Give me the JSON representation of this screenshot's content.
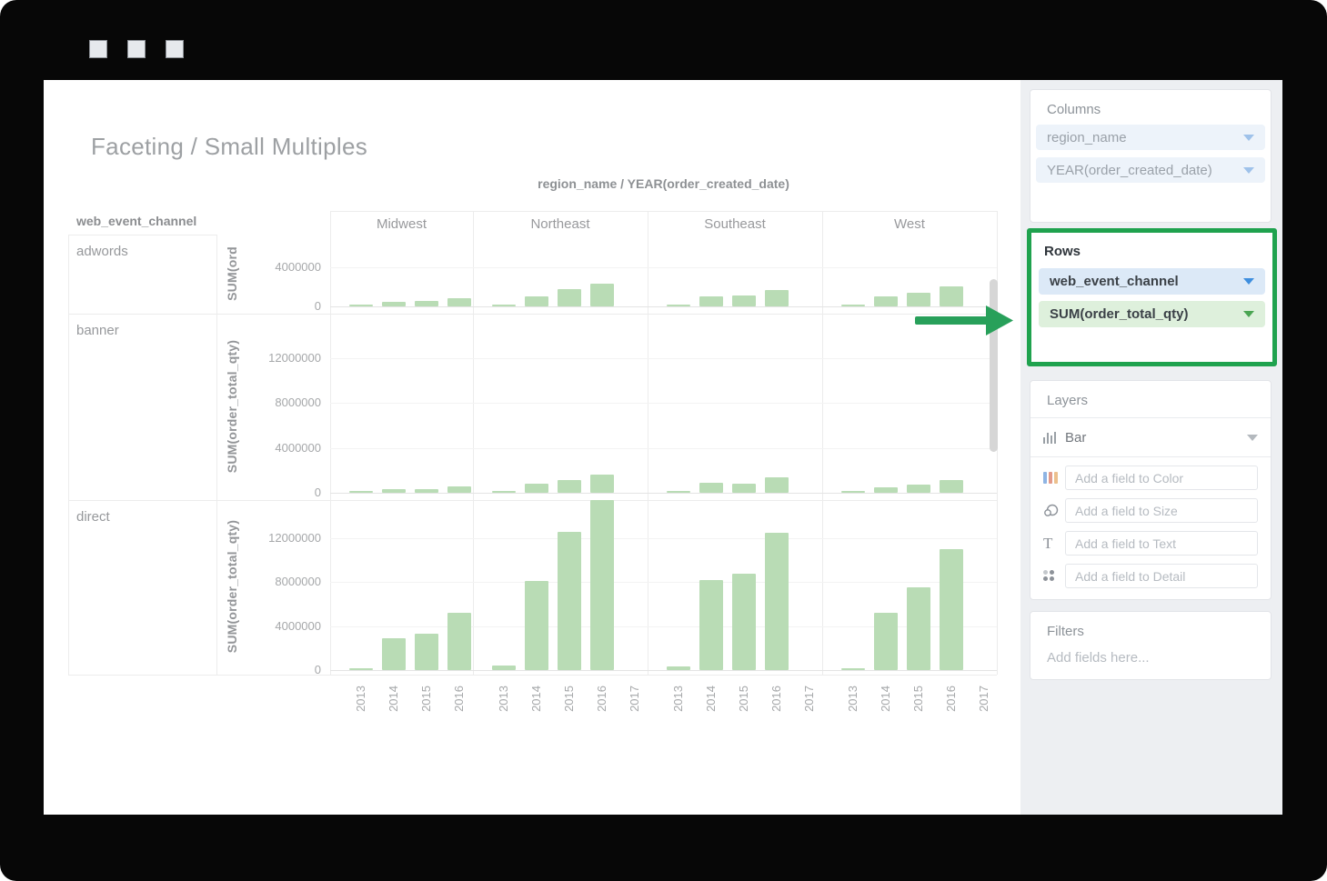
{
  "window": {
    "controls": [
      "square",
      "square",
      "square"
    ]
  },
  "page": {
    "title": "Faceting / Small Multiples"
  },
  "chart_data": {
    "type": "bar",
    "title": "region_name / YEAR(order_created_date)",
    "facet_row_field": "web_event_channel",
    "facet_col_field": "region_name",
    "x_field": "YEAR(order_created_date)",
    "bar_color": "#b9dcb5",
    "columns": [
      {
        "name": "Midwest",
        "years": [
          "2013",
          "2014",
          "2015",
          "2016"
        ]
      },
      {
        "name": "Northeast",
        "years": [
          "2013",
          "2014",
          "2015",
          "2016",
          "2017"
        ]
      },
      {
        "name": "Southeast",
        "years": [
          "2013",
          "2014",
          "2015",
          "2016",
          "2017"
        ]
      },
      {
        "name": "West",
        "years": [
          "2013",
          "2014",
          "2015",
          "2016",
          "2017"
        ]
      }
    ],
    "rows": [
      {
        "label": "adwords",
        "y_axis_label": "SUM(ord",
        "y_ticks": [
          4000000,
          0
        ],
        "values": [
          [
            100000,
            500000,
            550000,
            850000
          ],
          [
            200000,
            1000000,
            1800000,
            2300000,
            null
          ],
          [
            150000,
            1000000,
            1150000,
            1700000,
            null
          ],
          [
            100000,
            1000000,
            1350000,
            2050000,
            null
          ]
        ]
      },
      {
        "label": "banner",
        "y_axis_label": "SUM(order_total_qty)",
        "y_ticks": [
          12000000,
          8000000,
          4000000,
          0
        ],
        "values": [
          [
            50000,
            350000,
            350000,
            600000
          ],
          [
            100000,
            800000,
            1100000,
            1600000,
            null
          ],
          [
            100000,
            900000,
            800000,
            1400000,
            null
          ],
          [
            50000,
            500000,
            700000,
            1100000,
            null
          ]
        ]
      },
      {
        "label": "direct",
        "y_axis_label": "SUM(order_total_qty)",
        "y_ticks": [
          12000000,
          8000000,
          4000000,
          0
        ],
        "values": [
          [
            150000,
            2900000,
            3300000,
            5200000
          ],
          [
            400000,
            8100000,
            12600000,
            15500000,
            null
          ],
          [
            300000,
            8200000,
            8800000,
            12500000,
            null
          ],
          [
            100000,
            5200000,
            7500000,
            11000000,
            null
          ]
        ]
      }
    ]
  },
  "sidebar": {
    "columns_panel": {
      "title": "Columns",
      "pills": [
        {
          "label": "region_name"
        },
        {
          "label": "YEAR(order_created_date)"
        }
      ]
    },
    "rows_panel": {
      "title": "Rows",
      "highlighted": true,
      "pills": [
        {
          "label": "web_event_channel",
          "kind": "dimension"
        },
        {
          "label": "SUM(order_total_qty)",
          "kind": "measure"
        }
      ]
    },
    "layers_panel": {
      "title": "Layers",
      "layer_type": "Bar",
      "slots": [
        {
          "name": "color",
          "placeholder": "Add a field to Color"
        },
        {
          "name": "size",
          "placeholder": "Add a field to Size"
        },
        {
          "name": "text",
          "placeholder": "Add a field to Text"
        },
        {
          "name": "detail",
          "placeholder": "Add a field to Detail"
        }
      ]
    },
    "filters_panel": {
      "title": "Filters",
      "empty_text": "Add fields here..."
    }
  },
  "colors": {
    "highlight_green": "#1fa24e",
    "arrow_green": "#28a05a",
    "bar_green": "#b9dcb5",
    "dimension_pill_bg": "#dce9f7",
    "measure_pill_bg": "#def0dc",
    "column_pill_bg": "#edf3fa",
    "dimension_caret": "#3e8ede",
    "measure_caret": "#4aa552"
  }
}
